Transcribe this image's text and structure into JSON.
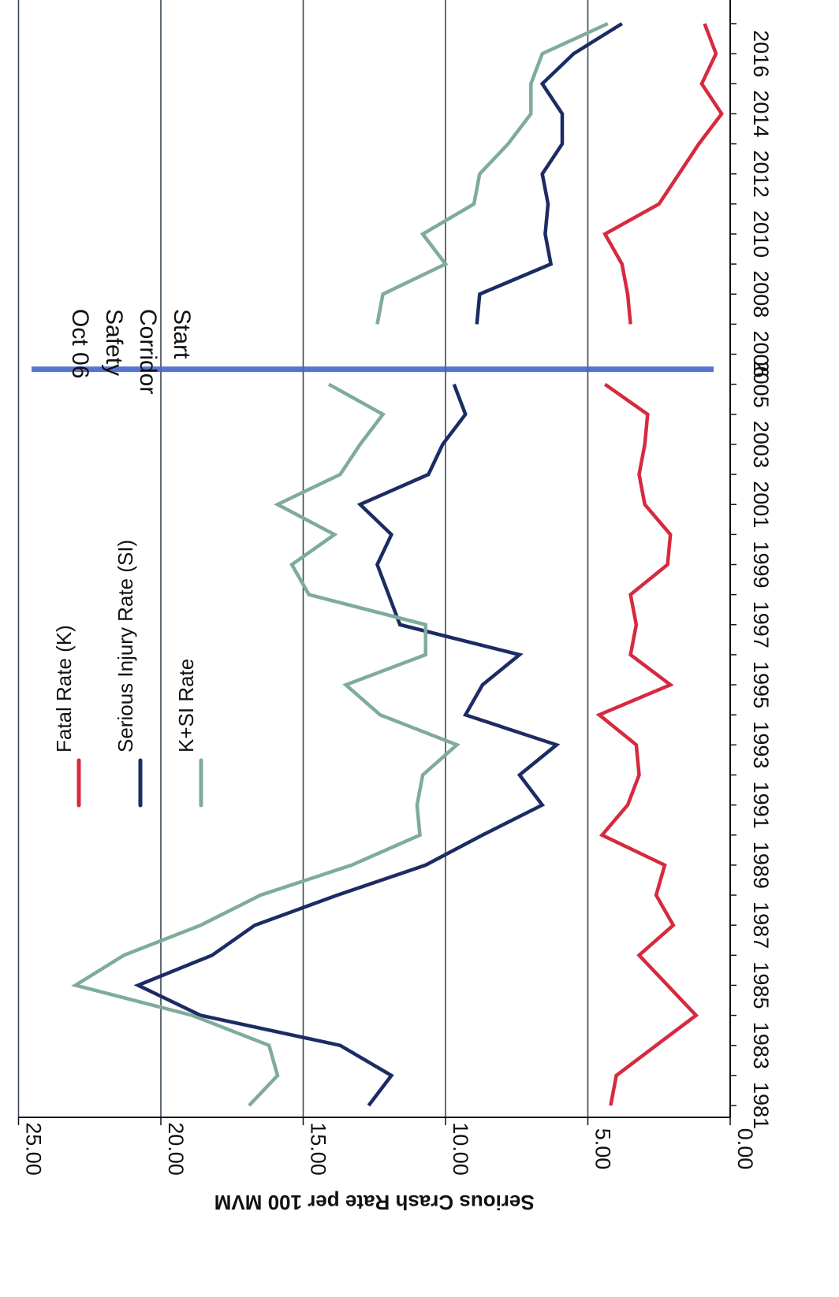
{
  "chart_data": {
    "type": "line",
    "orientation": "rotated-90-clockwise",
    "ylabel": "Serious Crash Rate per 100 MVM",
    "y_ticks": [
      "0.00",
      "5.00",
      "10.00",
      "15.00",
      "20.00",
      "25.00"
    ],
    "ylim": [
      0,
      25
    ],
    "x_tick_labels": [
      "1981",
      "1983",
      "1985",
      "1987",
      "1989",
      "1991",
      "1993",
      "1995",
      "1997",
      "1999",
      "2001",
      "2003",
      "2005",
      "2006",
      "2008",
      "2010",
      "2012",
      "2014",
      "2016"
    ],
    "x_categories": [
      1981,
      1982,
      1983,
      1984,
      1985,
      1986,
      1987,
      1988,
      1989,
      1990,
      1991,
      1992,
      1993,
      1994,
      1995,
      1996,
      1997,
      1998,
      1999,
      2000,
      2001,
      2002,
      2003,
      2004,
      2005,
      2006,
      2007,
      2008,
      2009,
      2010,
      2011,
      2012,
      2013,
      2014,
      2015,
      2016,
      2017
    ],
    "grid": true,
    "legend_position": "top-left",
    "series": [
      {
        "name": "Fatal Rate (K)",
        "color": "#d62a3e",
        "values": [
          4.2,
          4.0,
          2.6,
          1.2,
          2.2,
          3.2,
          2.0,
          2.6,
          2.3,
          4.5,
          3.6,
          3.2,
          3.3,
          4.6,
          2.1,
          3.5,
          3.3,
          3.5,
          2.2,
          2.1,
          3.0,
          3.2,
          3.0,
          2.9,
          4.4,
          null,
          3.5,
          3.6,
          3.8,
          4.4,
          2.5,
          1.8,
          1.1,
          0.3,
          1.0,
          0.5,
          0.9
        ]
      },
      {
        "name": "Serious Injury Rate (SI)",
        "color": "#1c2c63",
        "values": [
          12.7,
          11.9,
          13.7,
          18.6,
          20.8,
          18.2,
          16.7,
          13.8,
          10.7,
          8.7,
          6.6,
          7.4,
          6.1,
          9.3,
          8.7,
          7.4,
          11.6,
          12.0,
          12.4,
          11.9,
          13.0,
          10.6,
          10.1,
          9.3,
          9.7,
          null,
          8.9,
          8.8,
          6.3,
          6.5,
          6.4,
          6.6,
          5.9,
          5.9,
          6.6,
          5.5,
          3.8
        ]
      },
      {
        "name": "K+SI Rate",
        "color": "#7fab9d",
        "values": [
          16.9,
          15.9,
          16.2,
          18.9,
          23.0,
          21.3,
          18.6,
          16.5,
          13.3,
          10.9,
          11.0,
          10.8,
          9.6,
          12.3,
          13.5,
          10.7,
          10.7,
          14.8,
          15.4,
          13.9,
          15.9,
          13.7,
          13.0,
          12.2,
          14.1,
          null,
          12.4,
          12.2,
          10.0,
          10.8,
          9.0,
          8.8,
          7.8,
          7.0,
          7.0,
          6.6,
          4.3
        ]
      }
    ],
    "annotations": [
      {
        "lines": [
          "Oct 06",
          "Safety",
          "Corridor",
          "Start"
        ],
        "at_year": 2006,
        "color": "#4466cc"
      }
    ]
  }
}
